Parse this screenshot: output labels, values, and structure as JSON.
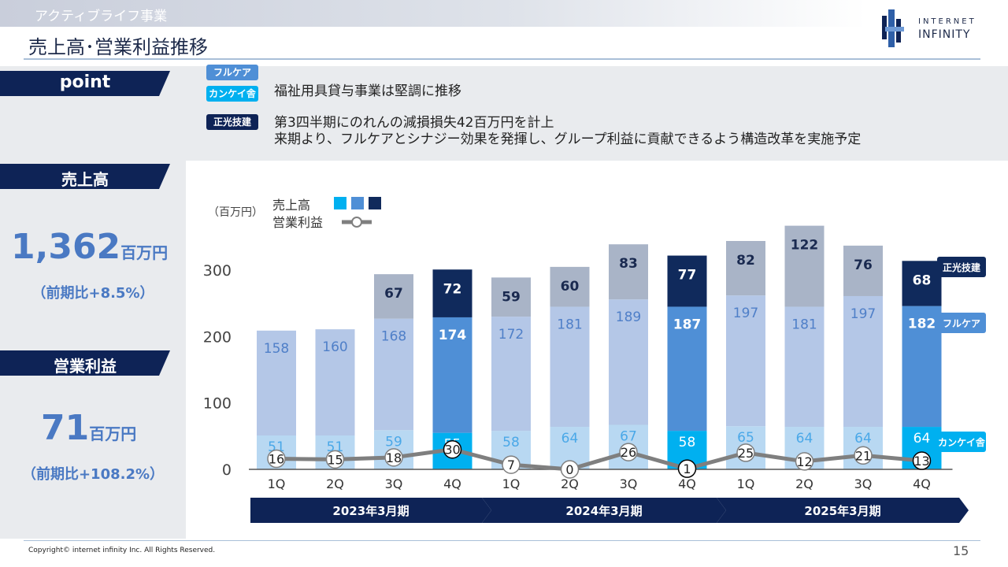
{
  "header": {
    "section": "アクティブライフ事業",
    "title": "売上高･営業利益推移",
    "logo_line1": "INTERNET",
    "logo_line2": "INFINITY"
  },
  "point": {
    "heading": "point",
    "tags": [
      "フルケア",
      "カンケイ舎",
      "正光技建"
    ],
    "lines": [
      "福祉用具貸与事業は堅調に推移",
      "第3四半期にのれんの減損損失42百万円を計上",
      "来期より、フルケアとシナジー効果を発揮し、グループ利益に貢献できるよう構造改革を実施予定"
    ]
  },
  "summary": {
    "sales_heading": "売上高",
    "sales_value": "1,362",
    "sales_unit": "百万円",
    "sales_note": "（前期比+8.5%）",
    "profit_heading": "営業利益",
    "profit_value": "71",
    "profit_unit": "百万円",
    "profit_note": "（前期比+108.2%）"
  },
  "colors": {
    "navy": "#0e2356",
    "kankei": "#00b0f0",
    "kankei_light": "#b8d8f2",
    "fullcare": "#4f8fd6",
    "fullcare_light": "#b4c7e7",
    "seiko": "#102a5c",
    "seiko_light": "#a9b4c7",
    "line": "#7f7f7f"
  },
  "chart_data": {
    "type": "bar",
    "unit_label": "（百万円）",
    "legend_sales": "売上高",
    "legend_profit": "営業利益",
    "categories": [
      "1Q",
      "2Q",
      "3Q",
      "4Q",
      "1Q",
      "2Q",
      "3Q",
      "4Q",
      "1Q",
      "2Q",
      "3Q",
      "4Q"
    ],
    "periods": [
      {
        "label": "2023年3月期",
        "quarters": 4
      },
      {
        "label": "2024年3月期",
        "quarters": 4
      },
      {
        "label": "2025年3月期",
        "quarters": 4
      }
    ],
    "series": [
      {
        "name": "カンケイ舎",
        "values": [
          51,
          51,
          59,
          55,
          58,
          64,
          67,
          58,
          65,
          64,
          64,
          64
        ]
      },
      {
        "name": "フルケア",
        "values": [
          158,
          160,
          168,
          174,
          172,
          181,
          189,
          187,
          197,
          181,
          197,
          182
        ]
      },
      {
        "name": "正光技建",
        "values": [
          null,
          null,
          67,
          72,
          59,
          60,
          83,
          77,
          82,
          122,
          76,
          68
        ]
      }
    ],
    "line": {
      "name": "営業利益",
      "values": [
        16,
        15,
        18,
        30,
        7,
        0,
        26,
        1,
        25,
        12,
        21,
        13
      ]
    },
    "highlight_quarter": "4Q",
    "y_ticks": [
      0,
      100,
      200,
      300
    ],
    "ylim": [
      0,
      350
    ],
    "grid": false
  },
  "footer": {
    "copyright": "Copyright© internet infinity Inc. All Rights Reserved.",
    "page": "15"
  }
}
